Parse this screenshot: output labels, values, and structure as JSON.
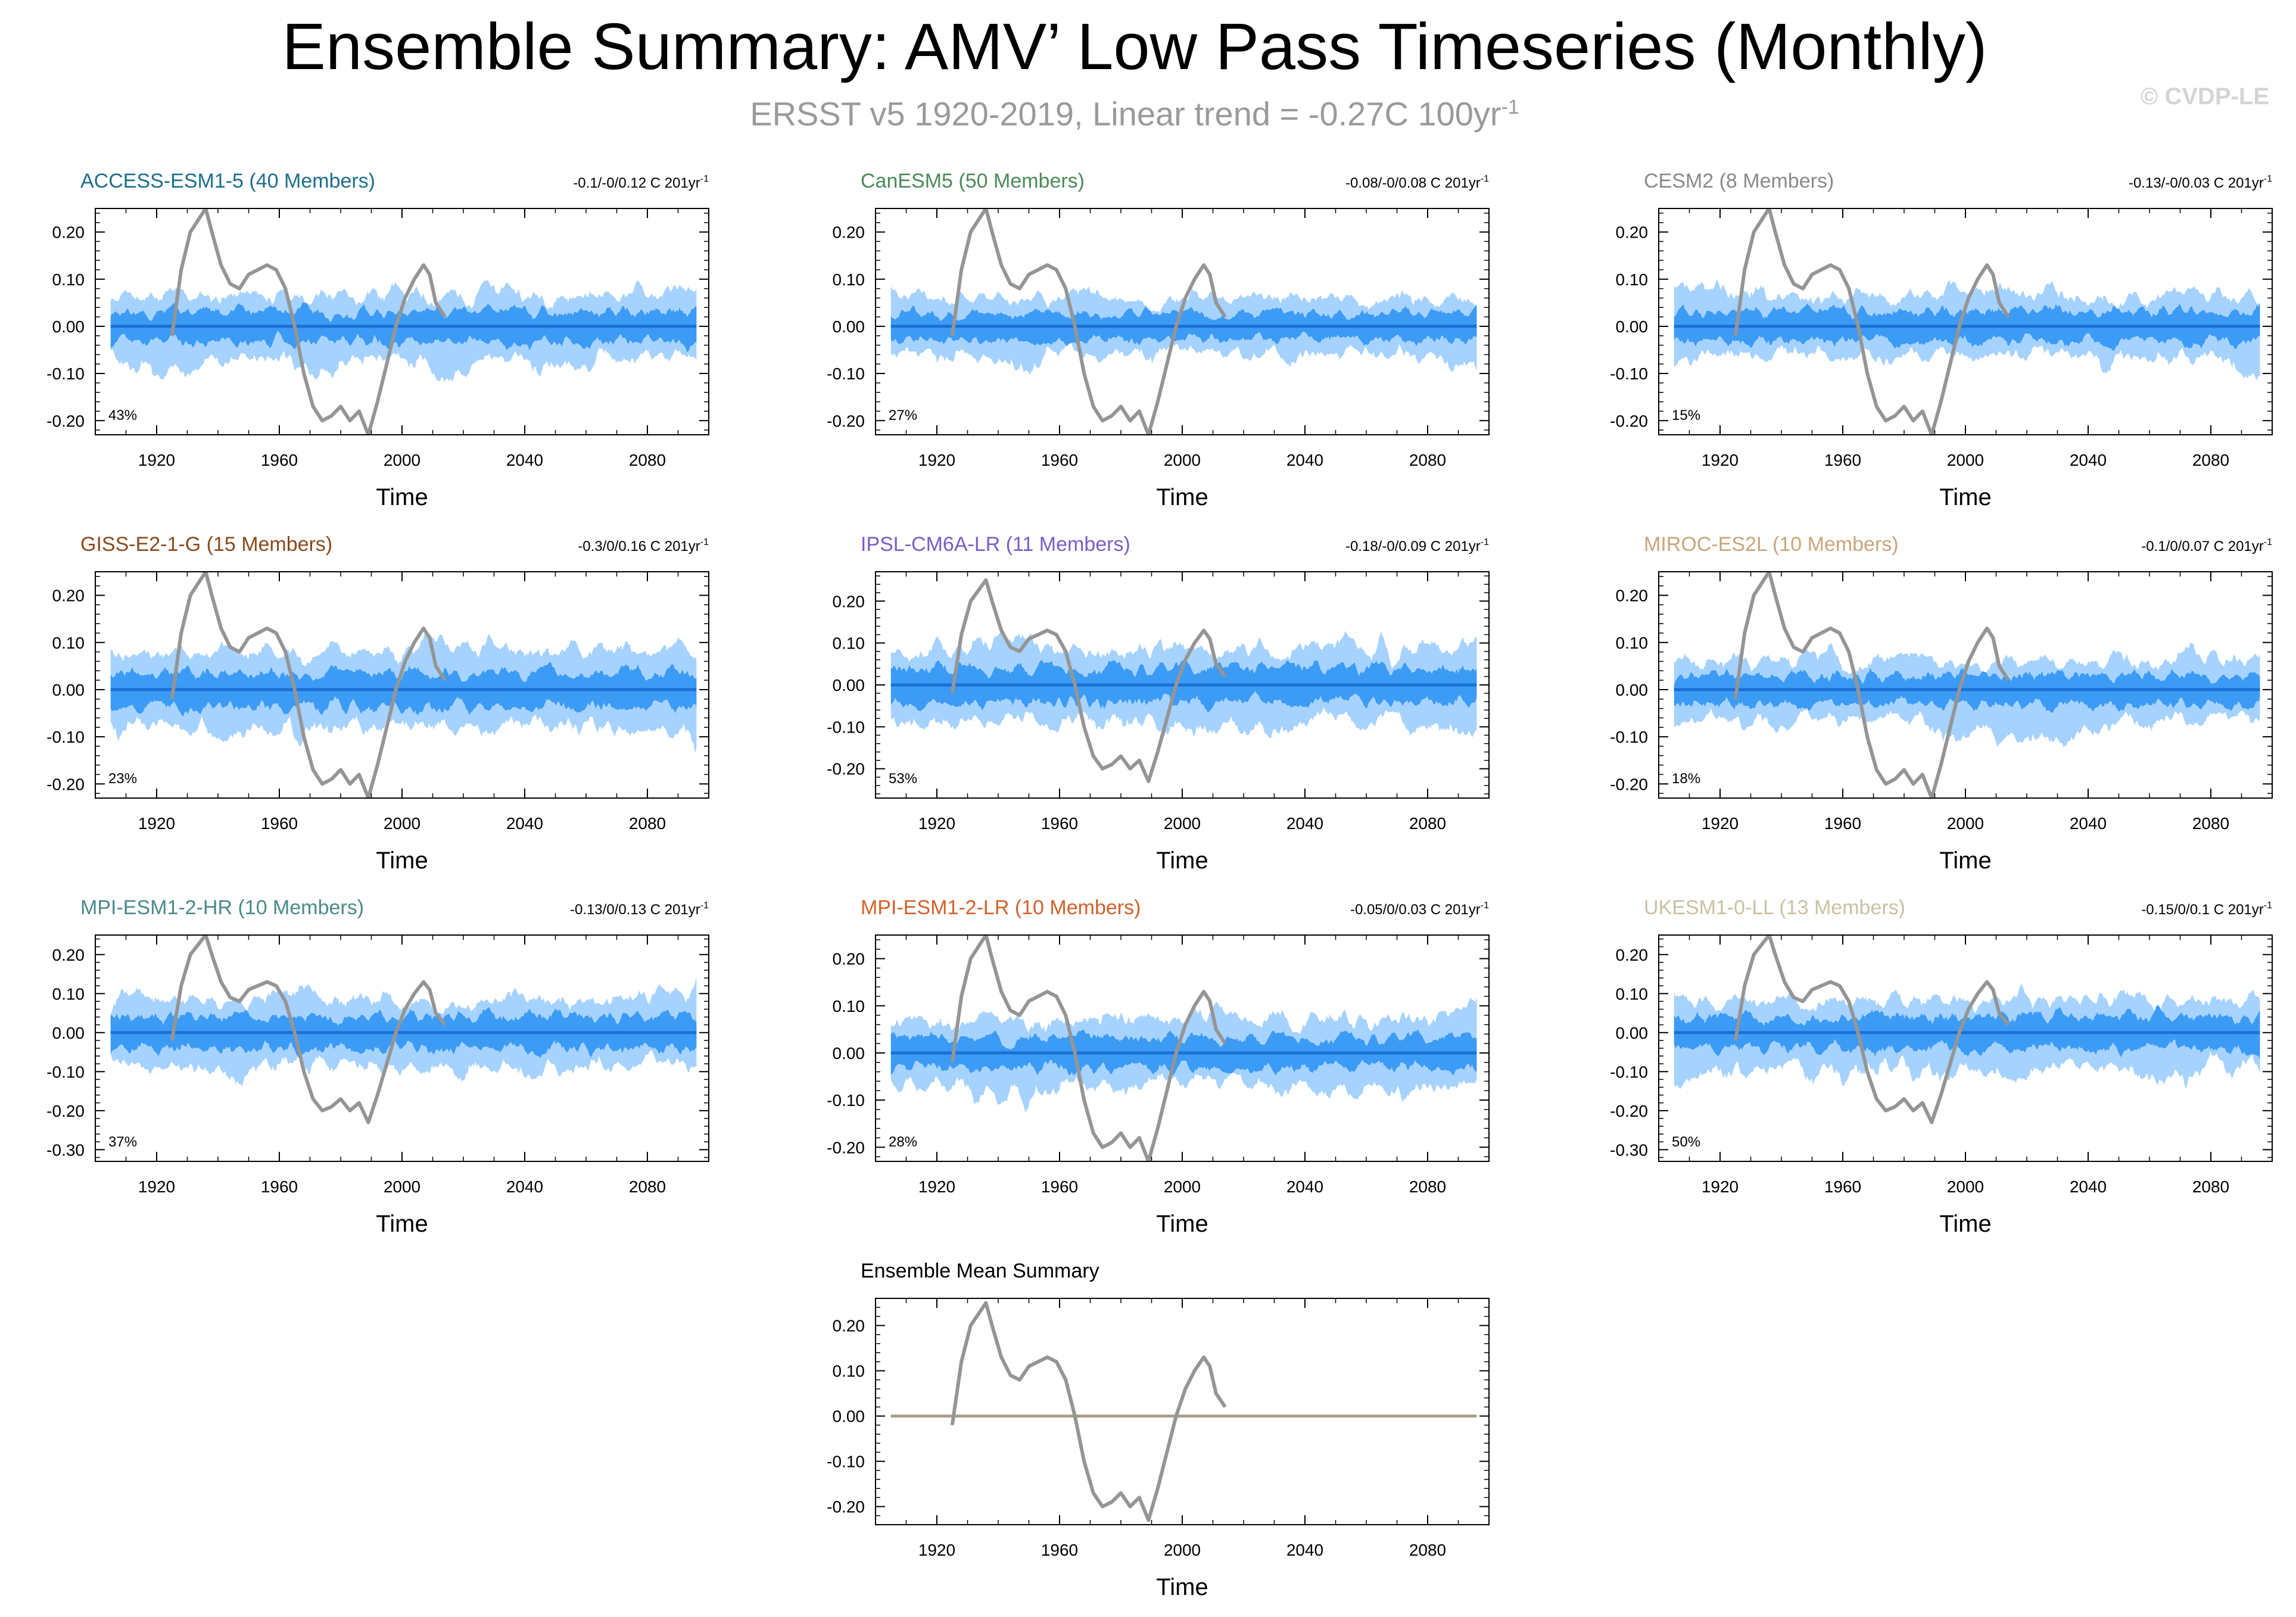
{
  "header": {
    "title": "Ensemble Summary: AMV’ Low Pass Timeseries (Monthly)",
    "subtitle_main": "ERSST v5 1920-2019, Linear trend = -0.27C 100yr",
    "subtitle_sup": "-1",
    "copyright": "© CVDP-LE"
  },
  "colors": {
    "outer_band": "#a6d2ff",
    "inner_band": "#3c9bf5",
    "ensemble_mean": "#1b6fd6",
    "observed": "#959595",
    "mean_summary_line": "#a8a08a"
  },
  "chart_data": {
    "type": "area",
    "xlabel": "Time",
    "xlim": [
      1900,
      2100
    ],
    "x_ticks": [
      1920,
      1960,
      2000,
      2040,
      2080
    ],
    "observed_series": {
      "name": "ERSST v5",
      "x": [
        1925,
        1928,
        1931,
        1934,
        1936,
        1938,
        1941,
        1944,
        1947,
        1950,
        1953,
        1956,
        1959,
        1962,
        1965,
        1968,
        1971,
        1974,
        1977,
        1980,
        1983,
        1986,
        1989,
        1992,
        1995,
        1998,
        2001,
        2004,
        2007,
        2009,
        2011,
        2014
      ],
      "values": [
        -0.02,
        0.12,
        0.2,
        0.23,
        0.25,
        0.2,
        0.13,
        0.09,
        0.08,
        0.11,
        0.12,
        0.13,
        0.12,
        0.08,
        0.0,
        -0.1,
        -0.17,
        -0.2,
        -0.19,
        -0.17,
        -0.2,
        -0.18,
        -0.23,
        -0.16,
        -0.08,
        0.0,
        0.06,
        0.1,
        0.13,
        0.11,
        0.05,
        0.02
      ]
    },
    "panels": [
      {
        "title": "ACCESS-ESM1-5 (40 Members)",
        "title_color": "#1c6e8a",
        "trend": "-0.1/-0/0.12 C 201yr",
        "trend_sup": "-1",
        "percent": "43%",
        "ylim": [
          -0.23,
          0.25
        ],
        "y_ticks": [
          -0.2,
          -0.1,
          0.0,
          0.1,
          0.2
        ],
        "y_tick_labels": [
          "-0.20",
          "-0.10",
          "0.00",
          "0.10",
          "0.20"
        ],
        "outer_spread": 0.085,
        "inner_spread": 0.04,
        "seed": 11,
        "show_obs": true
      },
      {
        "title": "CanESM5 (50 Members)",
        "title_color": "#4a8a5a",
        "trend": "-0.08/-0/0.08 C 201yr",
        "trend_sup": "-1",
        "percent": "27%",
        "ylim": [
          -0.23,
          0.25
        ],
        "y_ticks": [
          -0.2,
          -0.1,
          0.0,
          0.1,
          0.2
        ],
        "y_tick_labels": [
          "-0.20",
          "-0.10",
          "0.00",
          "0.10",
          "0.20"
        ],
        "outer_spread": 0.075,
        "inner_spread": 0.035,
        "seed": 23,
        "show_obs": true
      },
      {
        "title": "CESM2 (8 Members)",
        "title_color": "#8a8a8a",
        "trend": "-0.13/-0/0.03 C 201yr",
        "trend_sup": "-1",
        "percent": "15%",
        "ylim": [
          -0.23,
          0.25
        ],
        "y_ticks": [
          -0.2,
          -0.1,
          0.0,
          0.1,
          0.2
        ],
        "y_tick_labels": [
          "-0.20",
          "-0.10",
          "0.00",
          "0.10",
          "0.20"
        ],
        "outer_spread": 0.08,
        "inner_spread": 0.04,
        "seed": 37,
        "show_obs": true
      },
      {
        "title": "GISS-E2-1-G (15 Members)",
        "title_color": "#8a4a1c",
        "trend": "-0.3/0/0.16 C 201yr",
        "trend_sup": "-1",
        "percent": "23%",
        "ylim": [
          -0.23,
          0.25
        ],
        "y_ticks": [
          -0.2,
          -0.1,
          0.0,
          0.1,
          0.2
        ],
        "y_tick_labels": [
          "-0.20",
          "-0.10",
          "0.00",
          "0.10",
          "0.20"
        ],
        "outer_spread": 0.1,
        "inner_spread": 0.045,
        "seed": 41,
        "show_obs": true
      },
      {
        "title": "IPSL-CM6A-LR (11 Members)",
        "title_color": "#7b5cc7",
        "trend": "-0.18/-0/0.09 C 201yr",
        "trend_sup": "-1",
        "percent": "53%",
        "ylim": [
          -0.27,
          0.27
        ],
        "y_ticks": [
          -0.2,
          -0.1,
          0.0,
          0.1,
          0.2
        ],
        "y_tick_labels": [
          "-0.20",
          "-0.10",
          "0.00",
          "0.10",
          "0.20"
        ],
        "outer_spread": 0.11,
        "inner_spread": 0.05,
        "seed": 53,
        "show_obs": true
      },
      {
        "title": "MIROC-ES2L (10 Members)",
        "title_color": "#caa57a",
        "trend": "-0.1/0/0.07 C 201yr",
        "trend_sup": "-1",
        "percent": "18%",
        "ylim": [
          -0.23,
          0.25
        ],
        "y_ticks": [
          -0.2,
          -0.1,
          0.0,
          0.1,
          0.2
        ],
        "y_tick_labels": [
          "-0.20",
          "-0.10",
          "0.00",
          "0.10",
          "0.20"
        ],
        "outer_spread": 0.08,
        "inner_spread": 0.038,
        "seed": 67,
        "show_obs": true
      },
      {
        "title": "MPI-ESM1-2-HR (10 Members)",
        "title_color": "#4a8a8a",
        "trend": "-0.13/0/0.13 C 201yr",
        "trend_sup": "-1",
        "percent": "37%",
        "ylim": [
          -0.33,
          0.25
        ],
        "y_ticks": [
          -0.3,
          -0.2,
          -0.1,
          0.0,
          0.1,
          0.2
        ],
        "y_tick_labels": [
          "-0.30",
          "-0.20",
          "-0.10",
          "0.00",
          "0.10",
          "0.20"
        ],
        "outer_spread": 0.11,
        "inner_spread": 0.05,
        "seed": 71,
        "show_obs": true
      },
      {
        "title": "MPI-ESM1-2-LR (10 Members)",
        "title_color": "#d4602a",
        "trend": "-0.05/0/0.03 C 201yr",
        "trend_sup": "-1",
        "percent": "28%",
        "ylim": [
          -0.23,
          0.25
        ],
        "y_ticks": [
          -0.2,
          -0.1,
          0.0,
          0.1,
          0.2
        ],
        "y_tick_labels": [
          "-0.20",
          "-0.10",
          "0.00",
          "0.10",
          "0.20"
        ],
        "outer_spread": 0.09,
        "inner_spread": 0.04,
        "seed": 83,
        "show_obs": true
      },
      {
        "title": "UKESM1-0-LL (13 Members)",
        "title_color": "#c9c2a0",
        "trend": "-0.15/0/0.1 C 201yr",
        "trend_sup": "-1",
        "percent": "50%",
        "ylim": [
          -0.33,
          0.25
        ],
        "y_ticks": [
          -0.3,
          -0.2,
          -0.1,
          0.0,
          0.1,
          0.2
        ],
        "y_tick_labels": [
          "-0.30",
          "-0.20",
          "-0.10",
          "0.00",
          "0.10",
          "0.20"
        ],
        "outer_spread": 0.11,
        "inner_spread": 0.05,
        "seed": 97,
        "show_obs": true
      }
    ],
    "mean_summary": {
      "title": "Ensemble Mean Summary",
      "ylim": [
        -0.24,
        0.26
      ],
      "y_ticks": [
        -0.2,
        -0.1,
        0.0,
        0.1,
        0.2
      ],
      "y_tick_labels": [
        "-0.20",
        "-0.10",
        "0.00",
        "0.10",
        "0.20"
      ]
    }
  }
}
